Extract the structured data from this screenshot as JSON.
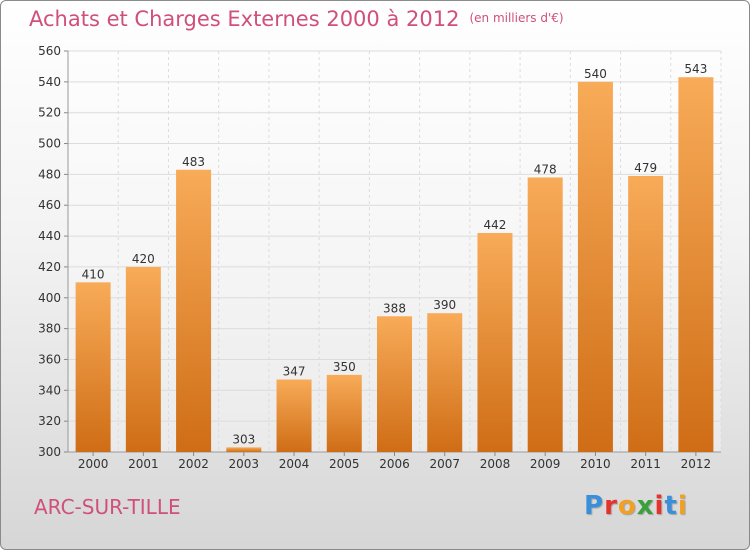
{
  "header": {
    "title": "Achats et Charges Externes 2000 à 2012",
    "unit": "(en milliers d'€)"
  },
  "footer": {
    "commune": "ARC-SUR-TILLE",
    "logo": "Proxiti",
    "logo_colors": [
      "#3a8fd8",
      "#e5322d",
      "#f0a022",
      "#3aa03a",
      "#e5322d",
      "#3a8fd8",
      "#f0a022"
    ]
  },
  "colors": {
    "title": "#d0507a",
    "bar_light": "#f8ab58",
    "bar_dark": "#cf6d16",
    "grid": "#dcdcdc",
    "text": "#333333"
  },
  "chart_data": {
    "type": "bar",
    "title": "Achats et Charges Externes 2000 à 2012",
    "subtitle": "(en milliers d'€)",
    "xlabel": "",
    "ylabel": "",
    "categories": [
      "2000",
      "2001",
      "2002",
      "2003",
      "2004",
      "2005",
      "2006",
      "2007",
      "2008",
      "2009",
      "2010",
      "2011",
      "2012"
    ],
    "values": [
      410,
      420,
      483,
      303,
      347,
      350,
      388,
      390,
      442,
      478,
      540,
      479,
      543
    ],
    "ylim": [
      300,
      560
    ],
    "yticks": [
      300,
      320,
      340,
      360,
      380,
      400,
      420,
      440,
      460,
      480,
      500,
      520,
      540,
      560
    ],
    "grid": true,
    "legend": "none"
  }
}
